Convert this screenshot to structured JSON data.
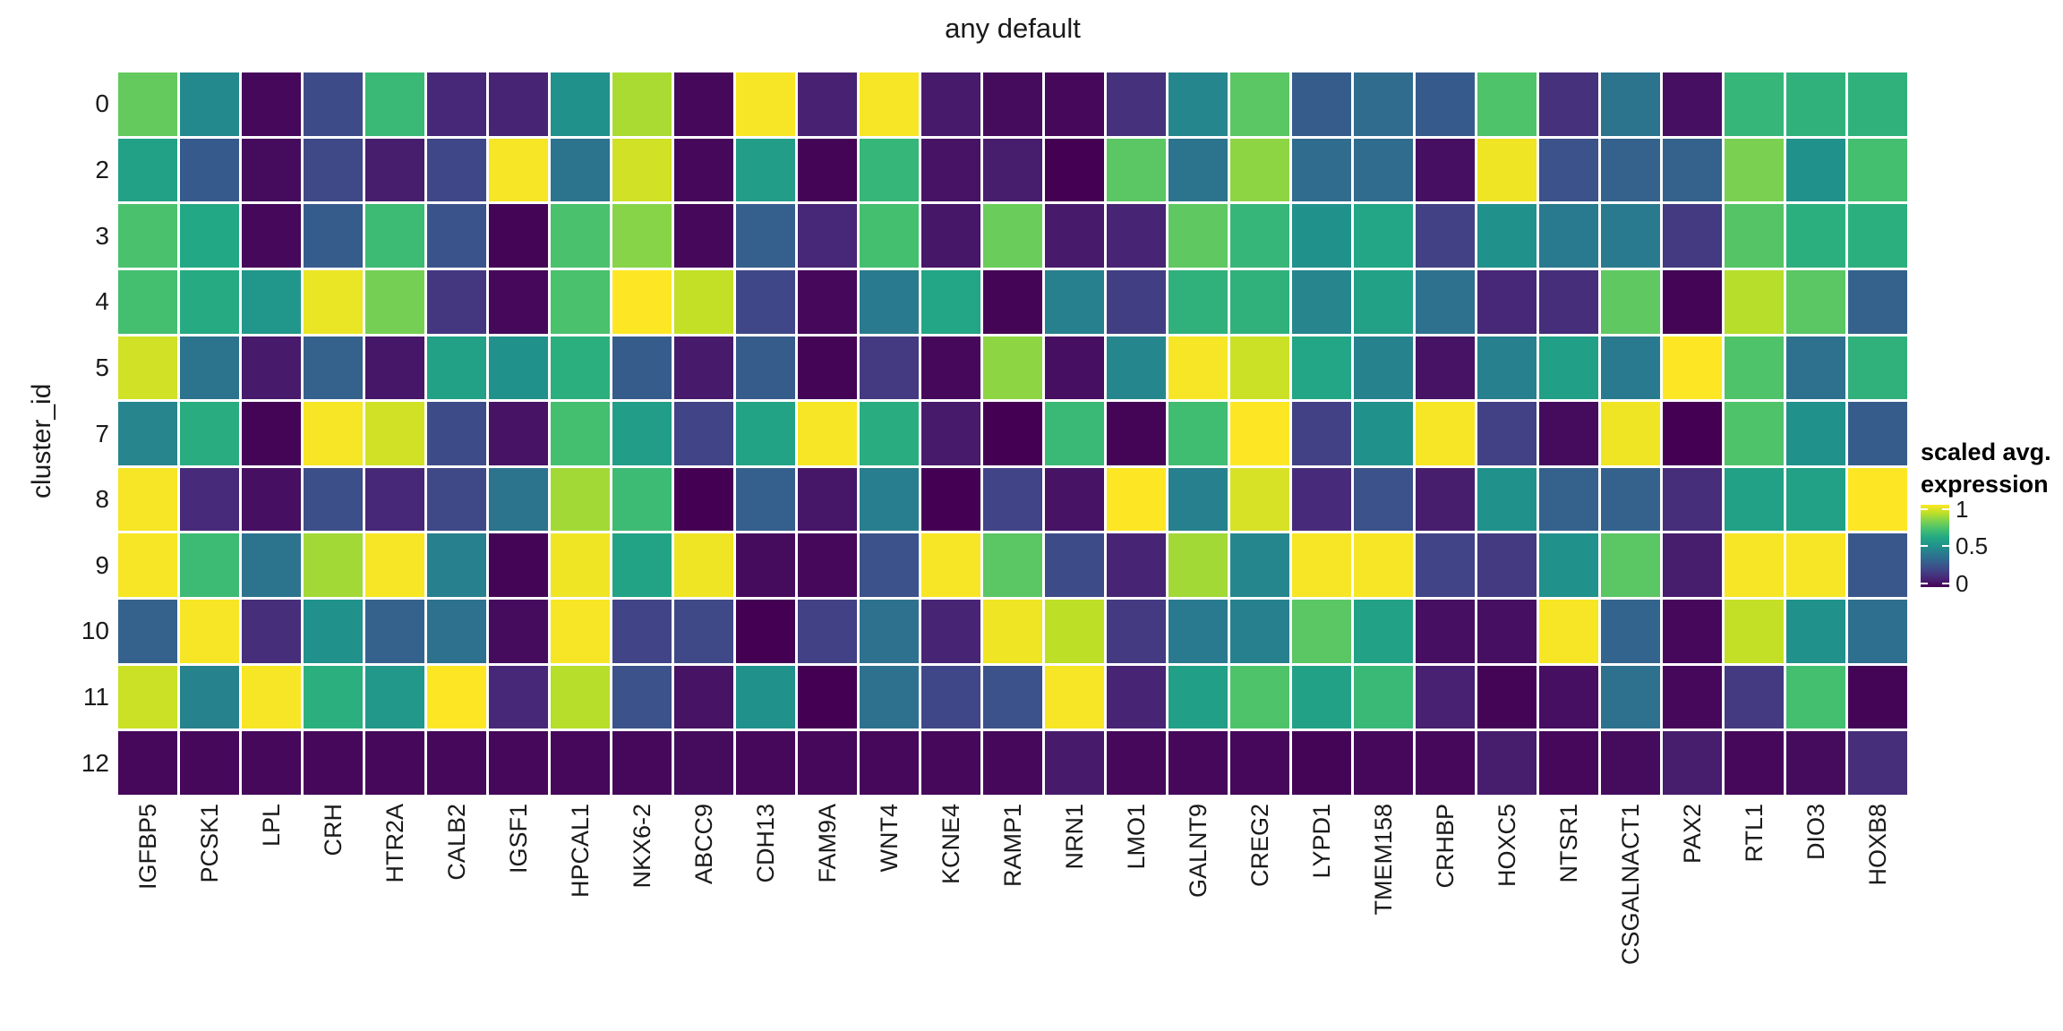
{
  "chart_data": {
    "type": "heatmap",
    "title": "any default",
    "xlabel": "",
    "ylabel": "cluster_id",
    "x_categories": [
      "IGFBP5",
      "PCSK1",
      "LPL",
      "CRH",
      "HTR2A",
      "CALB2",
      "IGSF1",
      "HPCAL1",
      "NKX6-2",
      "ABCC9",
      "CDH13",
      "FAM9A",
      "WNT4",
      "KCNE4",
      "RAMP1",
      "NRN1",
      "LMO1",
      "GALNT9",
      "CREG2",
      "LYPD1",
      "TMEM158",
      "CRHBP",
      "HOXC5",
      "NTSR1",
      "CSGALNACT1",
      "PAX2",
      "RTL1",
      "DIO3",
      "HOXB8"
    ],
    "y_categories": [
      "0",
      "2",
      "3",
      "4",
      "5",
      "7",
      "8",
      "9",
      "10",
      "11",
      "12"
    ],
    "values": [
      [
        0.76,
        0.47,
        0.02,
        0.23,
        0.67,
        0.11,
        0.1,
        0.5,
        0.87,
        0.02,
        0.99,
        0.09,
        0.99,
        0.07,
        0.03,
        0.02,
        0.14,
        0.46,
        0.74,
        0.29,
        0.35,
        0.28,
        0.72,
        0.14,
        0.38,
        0.04,
        0.66,
        0.64,
        0.64
      ],
      [
        0.57,
        0.28,
        0.03,
        0.22,
        0.08,
        0.21,
        0.99,
        0.38,
        0.93,
        0.02,
        0.55,
        0.01,
        0.66,
        0.05,
        0.08,
        0.0,
        0.74,
        0.38,
        0.83,
        0.35,
        0.35,
        0.04,
        0.98,
        0.25,
        0.31,
        0.31,
        0.8,
        0.5,
        0.7
      ],
      [
        0.71,
        0.6,
        0.02,
        0.29,
        0.68,
        0.26,
        0.01,
        0.71,
        0.82,
        0.02,
        0.3,
        0.11,
        0.7,
        0.06,
        0.77,
        0.07,
        0.1,
        0.75,
        0.66,
        0.5,
        0.59,
        0.19,
        0.5,
        0.41,
        0.41,
        0.17,
        0.73,
        0.63,
        0.63
      ],
      [
        0.7,
        0.61,
        0.52,
        0.97,
        0.79,
        0.16,
        0.02,
        0.71,
        1.0,
        0.91,
        0.21,
        0.02,
        0.41,
        0.59,
        0.01,
        0.43,
        0.18,
        0.64,
        0.64,
        0.45,
        0.57,
        0.37,
        0.11,
        0.13,
        0.75,
        0.01,
        0.89,
        0.74,
        0.31
      ],
      [
        0.93,
        0.38,
        0.07,
        0.31,
        0.06,
        0.57,
        0.5,
        0.63,
        0.29,
        0.07,
        0.29,
        0.01,
        0.17,
        0.02,
        0.83,
        0.04,
        0.46,
        0.99,
        0.92,
        0.59,
        0.44,
        0.05,
        0.43,
        0.56,
        0.41,
        1.0,
        0.72,
        0.37,
        0.64
      ],
      [
        0.45,
        0.62,
        0.01,
        0.99,
        0.93,
        0.23,
        0.05,
        0.7,
        0.55,
        0.2,
        0.58,
        0.99,
        0.62,
        0.07,
        0.0,
        0.67,
        0.01,
        0.69,
        1.0,
        0.19,
        0.5,
        0.99,
        0.19,
        0.03,
        0.98,
        0.0,
        0.72,
        0.5,
        0.29
      ],
      [
        0.99,
        0.12,
        0.04,
        0.24,
        0.11,
        0.22,
        0.38,
        0.86,
        0.68,
        0.0,
        0.3,
        0.06,
        0.42,
        0.0,
        0.2,
        0.05,
        1.0,
        0.43,
        0.94,
        0.12,
        0.25,
        0.08,
        0.5,
        0.31,
        0.31,
        0.13,
        0.57,
        0.57,
        1.0
      ],
      [
        0.99,
        0.68,
        0.38,
        0.86,
        0.99,
        0.43,
        0.01,
        0.98,
        0.58,
        0.98,
        0.03,
        0.02,
        0.25,
        0.99,
        0.74,
        0.23,
        0.1,
        0.86,
        0.46,
        0.99,
        0.99,
        0.2,
        0.17,
        0.5,
        0.74,
        0.08,
        0.99,
        0.99,
        0.27
      ],
      [
        0.31,
        0.99,
        0.13,
        0.5,
        0.31,
        0.37,
        0.03,
        0.99,
        0.2,
        0.22,
        0.0,
        0.19,
        0.37,
        0.1,
        0.98,
        0.9,
        0.17,
        0.41,
        0.43,
        0.74,
        0.57,
        0.04,
        0.04,
        0.99,
        0.32,
        0.02,
        0.91,
        0.5,
        0.36
      ],
      [
        0.92,
        0.44,
        0.99,
        0.63,
        0.53,
        1.0,
        0.11,
        0.89,
        0.25,
        0.05,
        0.5,
        0.0,
        0.37,
        0.21,
        0.25,
        0.99,
        0.1,
        0.56,
        0.72,
        0.57,
        0.67,
        0.09,
        0.01,
        0.04,
        0.37,
        0.02,
        0.17,
        0.7,
        0.01
      ],
      [
        0.02,
        0.02,
        0.02,
        0.02,
        0.02,
        0.02,
        0.02,
        0.02,
        0.02,
        0.03,
        0.02,
        0.02,
        0.02,
        0.02,
        0.02,
        0.07,
        0.02,
        0.02,
        0.02,
        0.01,
        0.02,
        0.02,
        0.08,
        0.02,
        0.03,
        0.08,
        0.02,
        0.03,
        0.13
      ]
    ],
    "value_range": [
      0,
      1
    ],
    "grid": false,
    "legend_position": "right",
    "colormap": "viridis",
    "colormap_stops": [
      "#440154",
      "#482475",
      "#414487",
      "#355f8d",
      "#2a788e",
      "#21918c",
      "#22a884",
      "#44bf70",
      "#7ad151",
      "#bddf26",
      "#fde725"
    ],
    "legend": {
      "title_line1": "scaled avg.",
      "title_line2": "expression",
      "ticks": [
        {
          "label": "1",
          "value": 1
        },
        {
          "label": "0.5",
          "value": 0.5
        },
        {
          "label": "0",
          "value": 0
        }
      ]
    }
  }
}
